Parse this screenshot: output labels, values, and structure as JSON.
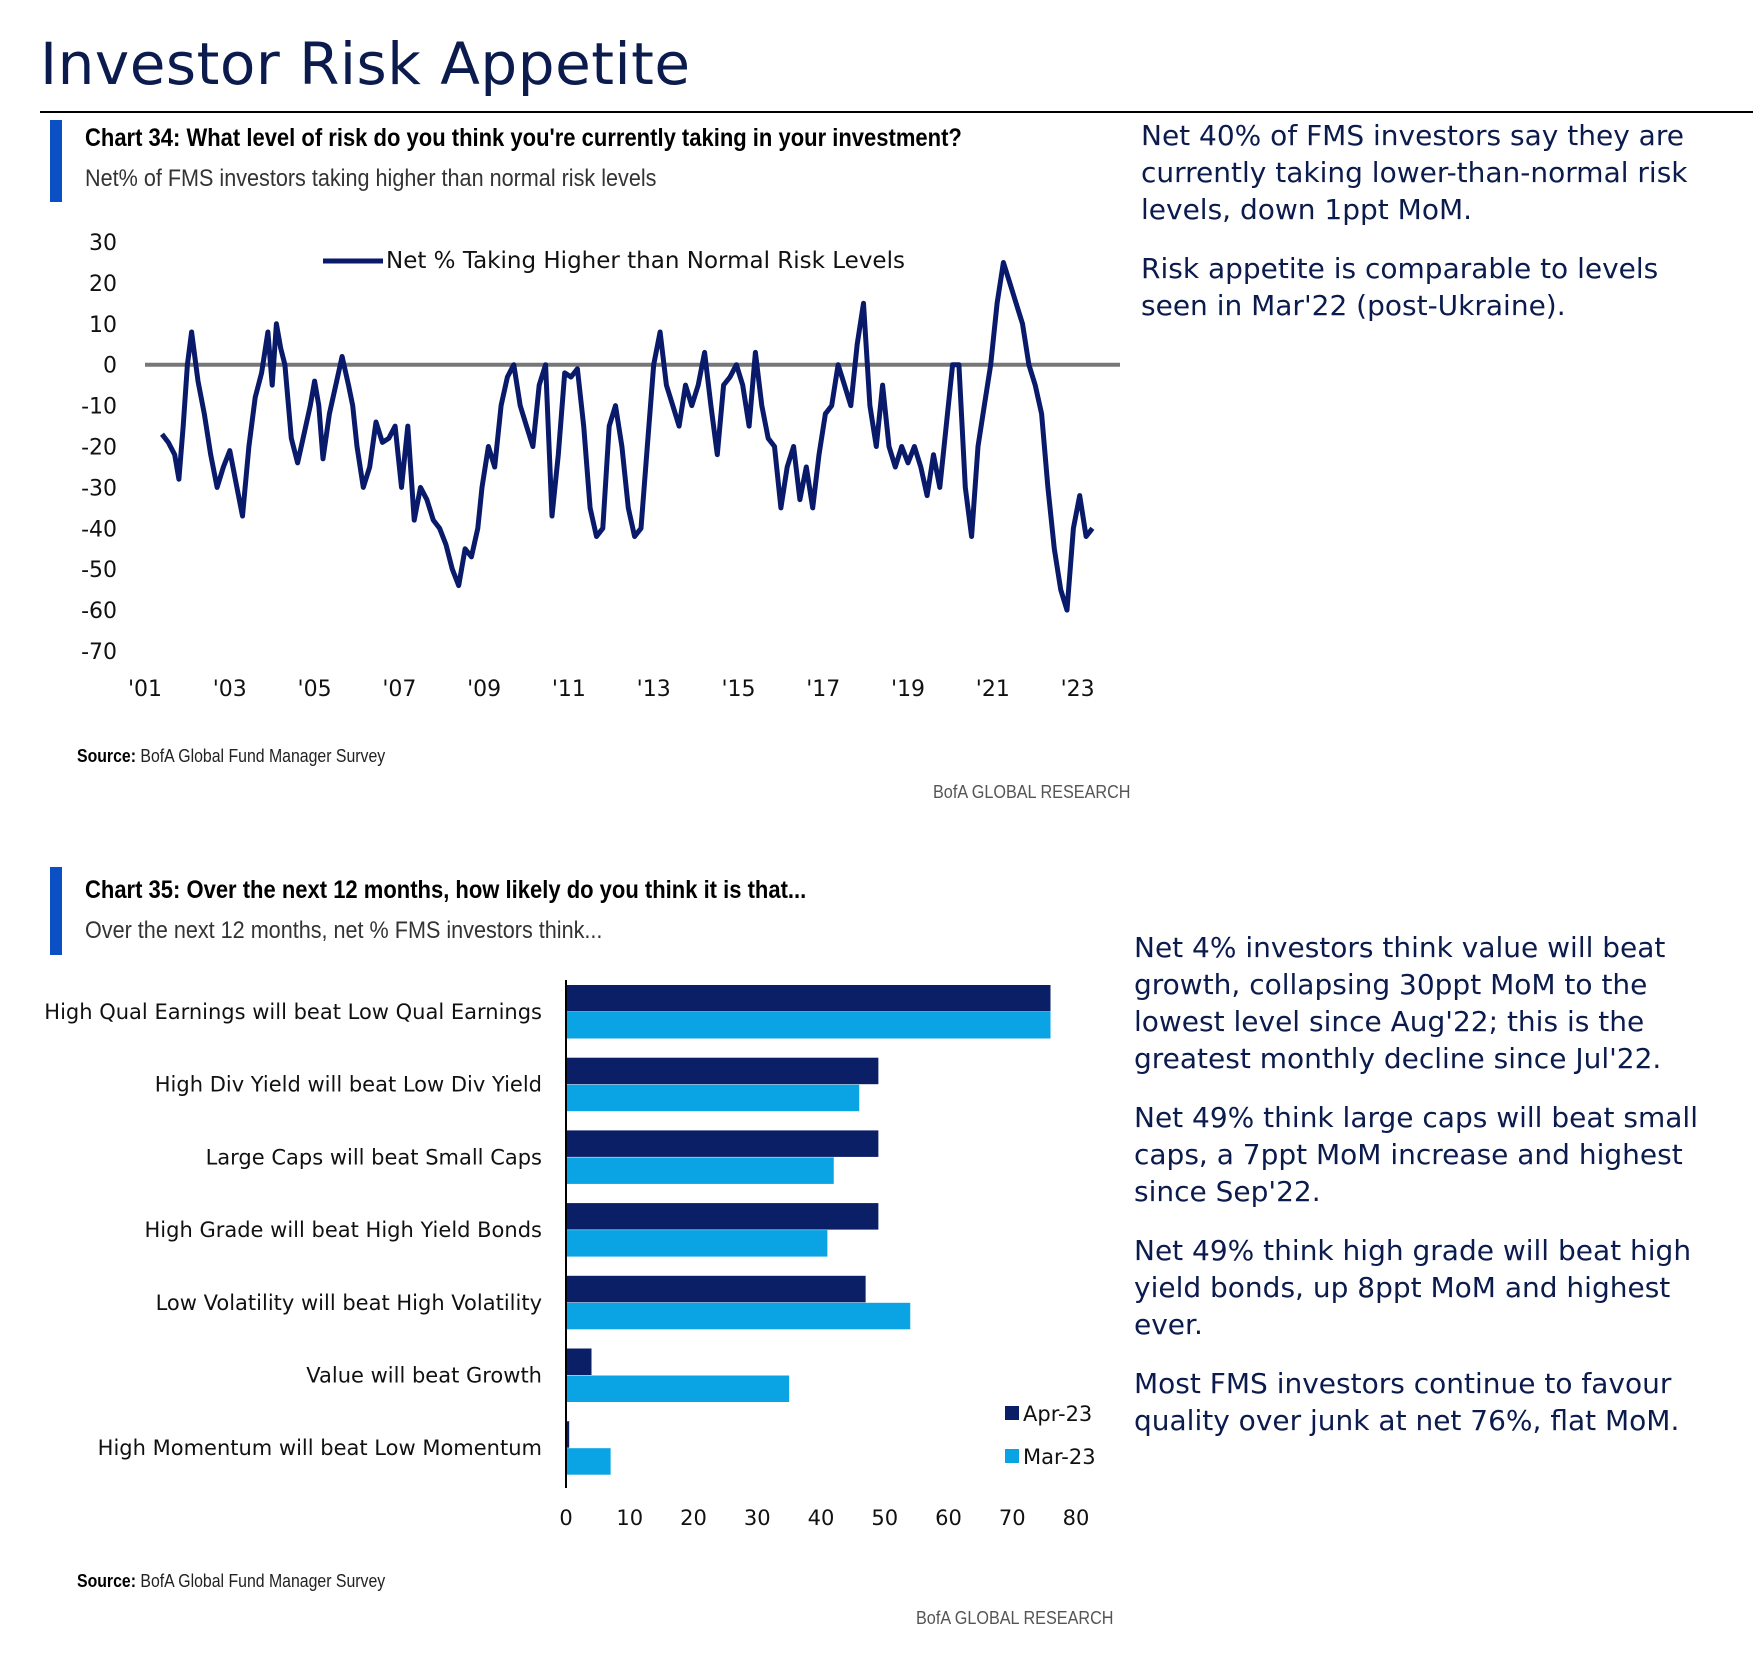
{
  "page": {
    "title": "Investor Risk Appetite"
  },
  "chart34": {
    "heading": "Chart 34: What level of risk do you think you're currently taking in your investment?",
    "subtitle": "Net% of FMS investors taking higher than normal risk levels",
    "source_label": "Source:",
    "source_text": "BofA Global Fund Manager Survey",
    "brand": "BofA GLOBAL RESEARCH",
    "commentary": [
      "Net 40% of FMS investors say they are currently taking lower-than-normal risk levels, down 1ppt MoM.",
      "Risk appetite is comparable to levels seen in Mar'22 (post-Ukraine)."
    ]
  },
  "chart35": {
    "heading": "Chart 35: Over the next 12 months, how likely do you think it is that...",
    "subtitle": "Over the next 12 months, net % FMS investors think...",
    "source_label": "Source:",
    "source_text": "BofA Global Fund Manager Survey",
    "brand": "BofA GLOBAL RESEARCH",
    "commentary": [
      "Net 4% investors think value will beat growth, collapsing 30ppt MoM to the lowest level since Aug'22; this is the greatest monthly decline since Jul'22.",
      "Net 49% think large caps will beat small caps, a 7ppt MoM increase and highest since Sep'22.",
      "Net 49% think high grade will beat high yield bonds, up 8ppt MoM and highest ever.",
      "Most FMS investors continue to favour quality over junk at net 76%, flat MoM."
    ]
  },
  "chart_data": [
    {
      "type": "line",
      "title": "Chart 34: What level of risk do you think you're currently taking in your investment?",
      "subtitle": "Net% of FMS investors taking higher than normal risk levels",
      "xlabel": "",
      "ylabel": "",
      "ylim": [
        -70,
        30
      ],
      "yticks": [
        "30",
        "20",
        "10",
        "0",
        "-10",
        "-20",
        "-30",
        "-40",
        "-50",
        "-60",
        "-70"
      ],
      "xlim": [
        2001.0,
        2024.0
      ],
      "xtick_labels": [
        "'01",
        "'03",
        "'05",
        "'07",
        "'09",
        "'11",
        "'13",
        "'15",
        "'17",
        "'19",
        "'21",
        "'23"
      ],
      "xtick_values": [
        2001,
        2003,
        2005,
        2007,
        2009,
        2011,
        2013,
        2015,
        2017,
        2019,
        2021,
        2023
      ],
      "reference_line": 0,
      "grid": false,
      "legend": "top-center",
      "color": "#0a1a6b",
      "series": [
        {
          "name": "Net % Taking Higher than Normal Risk Levels",
          "x": [
            2001.4,
            2001.55,
            2001.7,
            2001.8,
            2001.9,
            2002.0,
            2002.1,
            2002.25,
            2002.4,
            2002.55,
            2002.7,
            2002.85,
            2003.0,
            2003.15,
            2003.3,
            2003.45,
            2003.6,
            2003.75,
            2003.9,
            2004.0,
            2004.1,
            2004.2,
            2004.3,
            2004.45,
            2004.6,
            2004.75,
            2004.9,
            2005.0,
            2005.1,
            2005.2,
            2005.35,
            2005.5,
            2005.65,
            2005.8,
            2005.9,
            2006.0,
            2006.15,
            2006.3,
            2006.45,
            2006.6,
            2006.75,
            2006.9,
            2007.05,
            2007.2,
            2007.35,
            2007.5,
            2007.65,
            2007.8,
            2007.95,
            2008.1,
            2008.25,
            2008.4,
            2008.55,
            2008.7,
            2008.85,
            2008.95,
            2009.1,
            2009.25,
            2009.4,
            2009.55,
            2009.7,
            2009.85,
            2010.0,
            2010.15,
            2010.3,
            2010.45,
            2010.6,
            2010.75,
            2010.9,
            2011.05,
            2011.2,
            2011.35,
            2011.5,
            2011.65,
            2011.8,
            2011.95,
            2012.1,
            2012.25,
            2012.4,
            2012.55,
            2012.7,
            2012.85,
            2013.0,
            2013.15,
            2013.3,
            2013.45,
            2013.6,
            2013.75,
            2013.9,
            2014.05,
            2014.2,
            2014.35,
            2014.5,
            2014.65,
            2014.8,
            2014.95,
            2015.1,
            2015.25,
            2015.4,
            2015.55,
            2015.7,
            2015.85,
            2016.0,
            2016.15,
            2016.3,
            2016.45,
            2016.6,
            2016.75,
            2016.9,
            2017.05,
            2017.2,
            2017.35,
            2017.5,
            2017.65,
            2017.8,
            2017.95,
            2018.1,
            2018.25,
            2018.4,
            2018.55,
            2018.7,
            2018.85,
            2019.0,
            2019.15,
            2019.3,
            2019.45,
            2019.6,
            2019.75,
            2019.9,
            2020.05,
            2020.2,
            2020.35,
            2020.5,
            2020.65,
            2020.8,
            2020.95,
            2021.1,
            2021.25,
            2021.4,
            2021.55,
            2021.7,
            2021.85,
            2022.0,
            2022.15,
            2022.3,
            2022.45,
            2022.6,
            2022.75,
            2022.9,
            2023.05,
            2023.2,
            2023.35
          ],
          "y": [
            -17,
            -19,
            -22,
            -28,
            -15,
            0,
            8,
            -4,
            -12,
            -22,
            -30,
            -25,
            -21,
            -29,
            -37,
            -20,
            -8,
            -2,
            8,
            -5,
            10,
            4,
            0,
            -18,
            -24,
            -17,
            -10,
            -4,
            -10,
            -23,
            -12,
            -5,
            2,
            -5,
            -10,
            -20,
            -30,
            -25,
            -14,
            -19,
            -18,
            -15,
            -30,
            -15,
            -38,
            -30,
            -33,
            -38,
            -40,
            -44,
            -50,
            -54,
            -45,
            -47,
            -40,
            -30,
            -20,
            -25,
            -10,
            -3,
            0,
            -10,
            -15,
            -20,
            -5,
            0,
            -37,
            -22,
            -2,
            -3,
            -1,
            -15,
            -35,
            -42,
            -40,
            -15,
            -10,
            -20,
            -35,
            -42,
            -40,
            -20,
            0,
            8,
            -5,
            -10,
            -15,
            -5,
            -10,
            -5,
            3,
            -10,
            -22,
            -5,
            -3,
            0,
            -5,
            -15,
            3,
            -10,
            -18,
            -20,
            -35,
            -25,
            -20,
            -33,
            -25,
            -35,
            -22,
            -12,
            -10,
            0,
            -5,
            -10,
            5,
            15,
            -10,
            -20,
            -5,
            -20,
            -25,
            -20,
            -24,
            -20,
            -25,
            -32,
            -22,
            -30,
            -15,
            0,
            0,
            -30,
            -42,
            -20,
            -10,
            0,
            15,
            25,
            20,
            15,
            10,
            0,
            -5,
            -12,
            -30,
            -45,
            -55,
            -60,
            -40,
            -32,
            -42,
            -40
          ]
        }
      ]
    },
    {
      "type": "bar",
      "orientation": "horizontal",
      "title": "Chart 35: Over the next 12 months, how likely do you think it is that...",
      "subtitle": "Over the next 12 months, net % FMS investors think...",
      "categories": [
        "High Qual Earnings will beat Low Qual Earnings",
        "High Div Yield will beat Low Div Yield",
        "Large Caps will beat Small Caps",
        "High Grade will beat High Yield Bonds",
        "Low Volatility will beat High Volatility",
        "Value will beat Growth",
        "High Momentum will beat Low Momentum"
      ],
      "series": [
        {
          "name": "Apr-23",
          "color": "#0b1f66",
          "values": [
            76,
            49,
            49,
            49,
            47,
            4,
            0.5
          ]
        },
        {
          "name": "Mar-23",
          "color": "#0aa3e4",
          "values": [
            76,
            46,
            42,
            41,
            54,
            35,
            7
          ]
        }
      ],
      "xlim": [
        0,
        80
      ],
      "xticks": [
        "0",
        "10",
        "20",
        "30",
        "40",
        "50",
        "60",
        "70",
        "80"
      ],
      "xlabel": "",
      "ylabel": "",
      "grid": false,
      "legend": "bottom-right"
    }
  ]
}
